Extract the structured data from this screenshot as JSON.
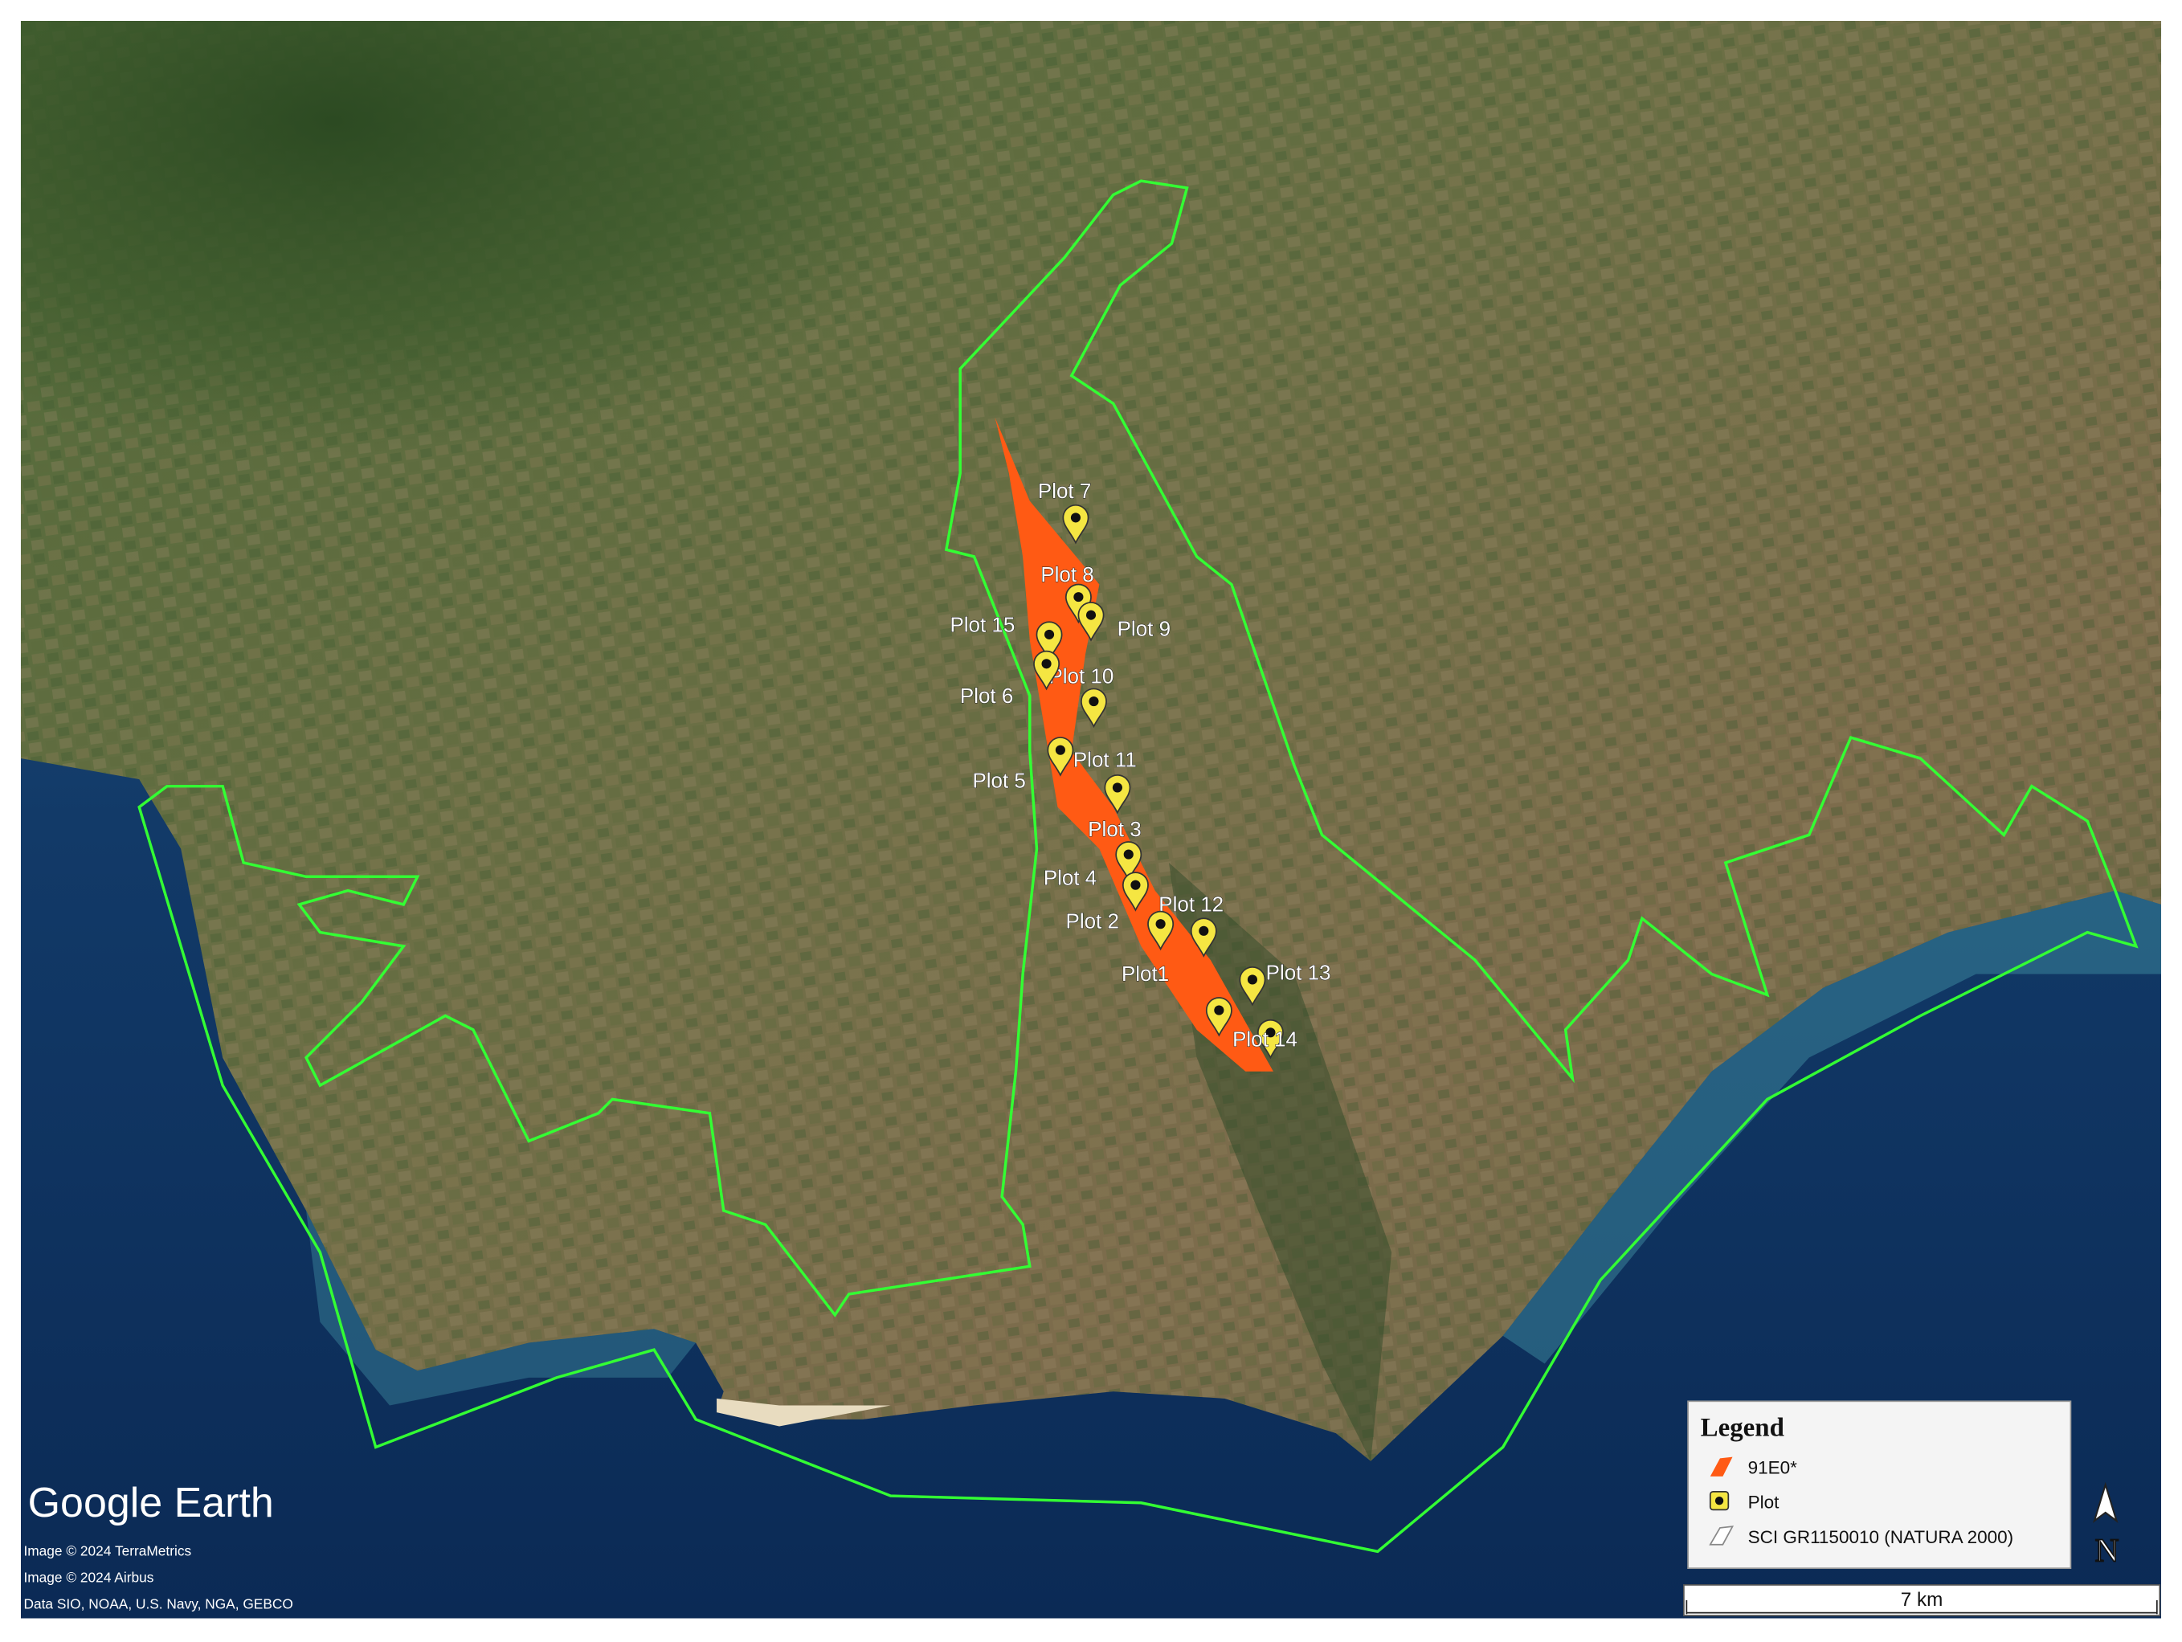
{
  "map": {
    "plots": [
      "Plot 7",
      "Plot 8",
      "Plot 9",
      "Plot 15",
      "Plot 10",
      "Plot 6",
      "Plot 11",
      "Plot 5",
      "Plot 3",
      "Plot 4",
      "Plot 12",
      "Plot 2",
      "Plot1",
      "Plot 13",
      "Plot 14"
    ],
    "legend": {
      "title": "Legend",
      "items": [
        "91E0*",
        "Plot",
        "SCI GR1150010 (NATURA 2000)"
      ]
    },
    "watermark": "Google Earth",
    "credits": [
      "Image © 2024 TerraMetrics",
      "Image © 2024 Airbus",
      "Data SIO, NOAA, U.S. Navy, NGA, GEBCO"
    ],
    "scale_bar": "7 km",
    "north": "N"
  }
}
